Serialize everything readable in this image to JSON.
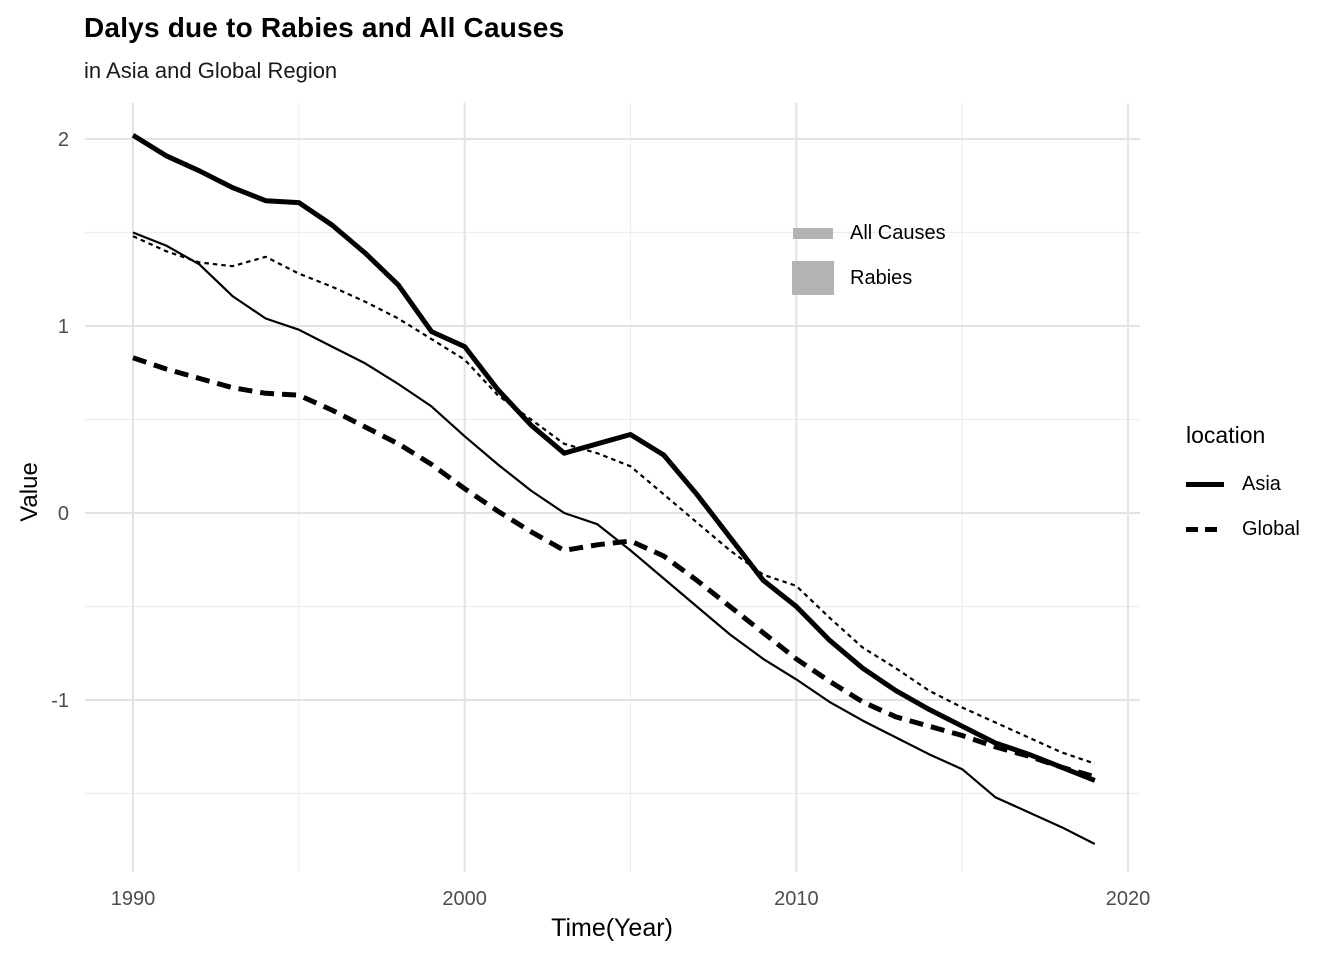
{
  "header": {
    "title": "Dalys due to Rabies and All Causes",
    "subtitle": "in Asia and Global Region"
  },
  "chart_data": {
    "type": "line",
    "title": "Dalys due to Rabies and All Causes",
    "subtitle": "in Asia and Global Region",
    "xlabel": "Time(Year)",
    "ylabel": "Value",
    "xlim": [
      1988.5,
      2020.4
    ],
    "ylim": [
      -1.92,
      2.19
    ],
    "grid": "on",
    "x": [
      1990,
      1991,
      1992,
      1993,
      1994,
      1995,
      1996,
      1997,
      1998,
      1999,
      2000,
      2001,
      2002,
      2003,
      2004,
      2005,
      2006,
      2007,
      2008,
      2009,
      2010,
      2011,
      2012,
      2013,
      2014,
      2015,
      2016,
      2017,
      2018,
      2019
    ],
    "x_ticks": {
      "labels": [
        "1990",
        "2000",
        "2010",
        "2020"
      ],
      "values": [
        1990,
        2000,
        2010,
        2020
      ],
      "minor": [
        1995,
        2005,
        2015
      ]
    },
    "y_ticks": {
      "labels": [
        "2",
        "1",
        "0",
        "-1"
      ],
      "values": [
        2,
        1,
        0,
        -1
      ],
      "minor": [
        1.5,
        0.5,
        -0.5,
        -1.5
      ]
    },
    "series": [
      {
        "name": "Asia All Causes",
        "location": "Asia",
        "cause": "All Causes",
        "line_width": "thin",
        "line_style": "solid",
        "values": [
          1.5,
          1.43,
          1.33,
          1.16,
          1.04,
          0.98,
          0.89,
          0.8,
          0.69,
          0.57,
          0.41,
          0.26,
          0.12,
          0.0,
          -0.06,
          -0.2,
          -0.35,
          -0.5,
          -0.65,
          -0.78,
          -0.89,
          -1.01,
          -1.11,
          -1.2,
          -1.29,
          -1.37,
          -1.52,
          -1.6,
          -1.68,
          -1.77
        ]
      },
      {
        "name": "Global All Causes",
        "location": "Global",
        "cause": "All Causes",
        "line_width": "thin",
        "line_style": "dashed",
        "values": [
          1.48,
          1.4,
          1.34,
          1.32,
          1.37,
          1.28,
          1.21,
          1.13,
          1.04,
          0.93,
          0.82,
          0.63,
          0.5,
          0.37,
          0.32,
          0.25,
          0.1,
          -0.05,
          -0.2,
          -0.33,
          -0.39,
          -0.56,
          -0.72,
          -0.83,
          -0.95,
          -1.04,
          -1.12,
          -1.2,
          -1.28,
          -1.34
        ]
      },
      {
        "name": "Asia Rabies",
        "location": "Asia",
        "cause": "Rabies",
        "line_width": "thick",
        "line_style": "solid",
        "values": [
          2.02,
          1.91,
          1.83,
          1.74,
          1.67,
          1.66,
          1.54,
          1.39,
          1.22,
          0.97,
          0.89,
          0.66,
          0.47,
          0.32,
          0.37,
          0.42,
          0.31,
          0.1,
          -0.13,
          -0.36,
          -0.5,
          -0.68,
          -0.83,
          -0.95,
          -1.05,
          -1.14,
          -1.23,
          -1.29,
          -1.36,
          -1.43
        ]
      },
      {
        "name": "Global Rabies",
        "location": "Global",
        "cause": "Rabies",
        "line_width": "thick",
        "line_style": "dashed",
        "values": [
          0.83,
          0.77,
          0.72,
          0.67,
          0.64,
          0.63,
          0.55,
          0.46,
          0.37,
          0.26,
          0.13,
          0.01,
          -0.1,
          -0.2,
          -0.17,
          -0.15,
          -0.23,
          -0.36,
          -0.5,
          -0.64,
          -0.78,
          -0.9,
          -1.01,
          -1.09,
          -1.14,
          -1.19,
          -1.25,
          -1.3,
          -1.36,
          -1.41
        ]
      }
    ],
    "legends": {
      "cause": {
        "position": "inside-top-right",
        "key_color": "#b3b3b3",
        "items": [
          {
            "label": "All Causes",
            "key": "thin-bar"
          },
          {
            "label": "Rabies",
            "key": "thick-bar"
          }
        ]
      },
      "location": {
        "title": "location",
        "position": "right",
        "items": [
          {
            "label": "Asia",
            "style": "solid"
          },
          {
            "label": "Global",
            "style": "dashed"
          }
        ]
      }
    }
  },
  "colors": {
    "background": "#ffffff",
    "line": "#000000",
    "tick_label": "#4d4d4d",
    "grid_major": "#e3e3e3",
    "grid_minor": "#eeeeee",
    "legend_key": "#b3b3b3"
  }
}
